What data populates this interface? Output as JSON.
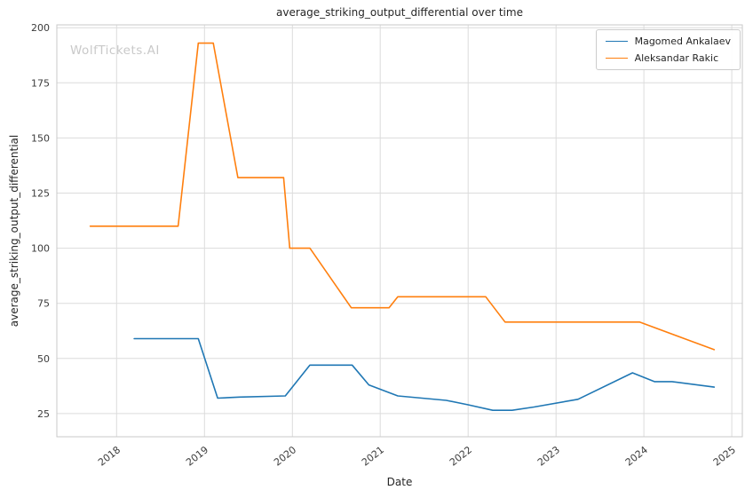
{
  "watermark": "WolfTickets.AI",
  "chart_data": {
    "type": "line",
    "title": "average_striking_output_differential over time",
    "xlabel": "Date",
    "ylabel": "average_striking_output_differential",
    "xlim": [
      2017.32,
      2025.12
    ],
    "ylim": [
      14.5,
      201.3
    ],
    "xticks": [
      2018,
      2019,
      2020,
      2021,
      2022,
      2023,
      2024,
      2025
    ],
    "yticks": [
      25,
      50,
      75,
      100,
      125,
      150,
      175,
      200
    ],
    "grid": true,
    "legend_position": "upper right",
    "colors": {
      "grid": "#dcdcdc",
      "spine": "#c9c9c9",
      "text": "#262626",
      "watermark": "#c9c9c9"
    },
    "series": [
      {
        "name": "Magomed Ankalaev",
        "color": "#1f77b4",
        "points": [
          [
            2018.2,
            59
          ],
          [
            2018.93,
            59
          ],
          [
            2019.15,
            32
          ],
          [
            2019.4,
            32.5
          ],
          [
            2019.92,
            33
          ],
          [
            2020.2,
            47
          ],
          [
            2020.68,
            47
          ],
          [
            2020.87,
            38
          ],
          [
            2021.2,
            33
          ],
          [
            2021.75,
            31
          ],
          [
            2022.0,
            29
          ],
          [
            2022.28,
            26.5
          ],
          [
            2022.5,
            26.5
          ],
          [
            2022.75,
            28
          ],
          [
            2023.25,
            31.5
          ],
          [
            2023.87,
            43.5
          ],
          [
            2024.12,
            39.5
          ],
          [
            2024.32,
            39.5
          ],
          [
            2024.8,
            37
          ]
        ]
      },
      {
        "name": "Aleksandar Rakic",
        "color": "#ff7f0e",
        "points": [
          [
            2017.7,
            110
          ],
          [
            2018.7,
            110
          ],
          [
            2018.93,
            193
          ],
          [
            2019.1,
            193
          ],
          [
            2019.38,
            132
          ],
          [
            2019.9,
            132
          ],
          [
            2019.97,
            100
          ],
          [
            2020.2,
            100
          ],
          [
            2020.67,
            73
          ],
          [
            2021.1,
            73
          ],
          [
            2021.2,
            78
          ],
          [
            2022.2,
            78
          ],
          [
            2022.42,
            66.5
          ],
          [
            2023.95,
            66.5
          ],
          [
            2024.8,
            54
          ]
        ]
      }
    ]
  }
}
